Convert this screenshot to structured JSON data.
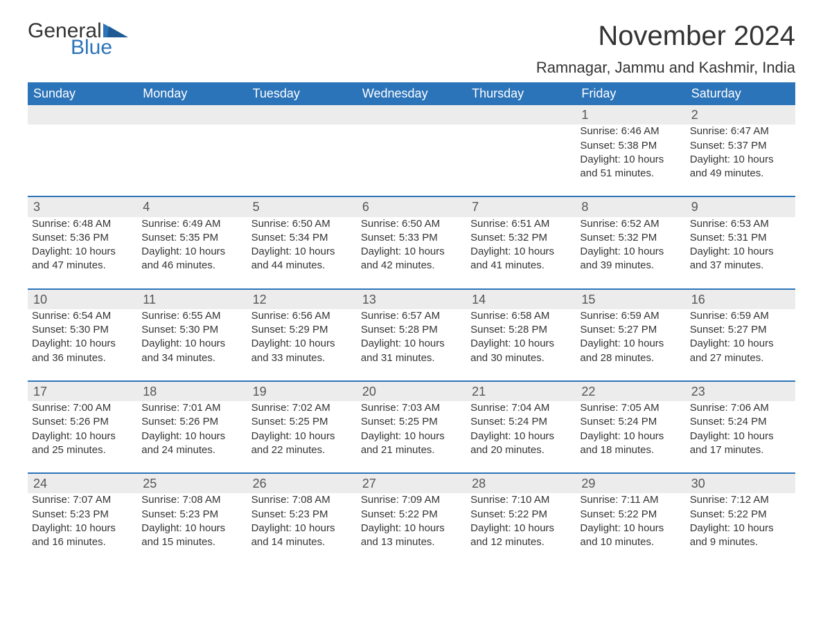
{
  "logo": {
    "general": "General",
    "blue": "Blue",
    "flag_color": "#2c74b9"
  },
  "title": "November 2024",
  "location": "Ramnagar, Jammu and Kashmir, India",
  "weekday_headers": [
    "Sunday",
    "Monday",
    "Tuesday",
    "Wednesday",
    "Thursday",
    "Friday",
    "Saturday"
  ],
  "colors": {
    "header_bg": "#2c74b9",
    "header_text": "#ffffff",
    "daynum_bg": "#ececec",
    "daynum_border": "#2c74b9",
    "text": "#333333",
    "background": "#ffffff"
  },
  "typography": {
    "title_fontsize": 40,
    "location_fontsize": 22,
    "header_fontsize": 18,
    "daynum_fontsize": 18,
    "body_fontsize": 15
  },
  "layout": {
    "start_weekday_index": 5,
    "columns": 7,
    "rows": 5
  },
  "days": [
    {
      "n": 1,
      "sunrise": "6:46 AM",
      "sunset": "5:38 PM",
      "daylight": "10 hours and 51 minutes."
    },
    {
      "n": 2,
      "sunrise": "6:47 AM",
      "sunset": "5:37 PM",
      "daylight": "10 hours and 49 minutes."
    },
    {
      "n": 3,
      "sunrise": "6:48 AM",
      "sunset": "5:36 PM",
      "daylight": "10 hours and 47 minutes."
    },
    {
      "n": 4,
      "sunrise": "6:49 AM",
      "sunset": "5:35 PM",
      "daylight": "10 hours and 46 minutes."
    },
    {
      "n": 5,
      "sunrise": "6:50 AM",
      "sunset": "5:34 PM",
      "daylight": "10 hours and 44 minutes."
    },
    {
      "n": 6,
      "sunrise": "6:50 AM",
      "sunset": "5:33 PM",
      "daylight": "10 hours and 42 minutes."
    },
    {
      "n": 7,
      "sunrise": "6:51 AM",
      "sunset": "5:32 PM",
      "daylight": "10 hours and 41 minutes."
    },
    {
      "n": 8,
      "sunrise": "6:52 AM",
      "sunset": "5:32 PM",
      "daylight": "10 hours and 39 minutes."
    },
    {
      "n": 9,
      "sunrise": "6:53 AM",
      "sunset": "5:31 PM",
      "daylight": "10 hours and 37 minutes."
    },
    {
      "n": 10,
      "sunrise": "6:54 AM",
      "sunset": "5:30 PM",
      "daylight": "10 hours and 36 minutes."
    },
    {
      "n": 11,
      "sunrise": "6:55 AM",
      "sunset": "5:30 PM",
      "daylight": "10 hours and 34 minutes."
    },
    {
      "n": 12,
      "sunrise": "6:56 AM",
      "sunset": "5:29 PM",
      "daylight": "10 hours and 33 minutes."
    },
    {
      "n": 13,
      "sunrise": "6:57 AM",
      "sunset": "5:28 PM",
      "daylight": "10 hours and 31 minutes."
    },
    {
      "n": 14,
      "sunrise": "6:58 AM",
      "sunset": "5:28 PM",
      "daylight": "10 hours and 30 minutes."
    },
    {
      "n": 15,
      "sunrise": "6:59 AM",
      "sunset": "5:27 PM",
      "daylight": "10 hours and 28 minutes."
    },
    {
      "n": 16,
      "sunrise": "6:59 AM",
      "sunset": "5:27 PM",
      "daylight": "10 hours and 27 minutes."
    },
    {
      "n": 17,
      "sunrise": "7:00 AM",
      "sunset": "5:26 PM",
      "daylight": "10 hours and 25 minutes."
    },
    {
      "n": 18,
      "sunrise": "7:01 AM",
      "sunset": "5:26 PM",
      "daylight": "10 hours and 24 minutes."
    },
    {
      "n": 19,
      "sunrise": "7:02 AM",
      "sunset": "5:25 PM",
      "daylight": "10 hours and 22 minutes."
    },
    {
      "n": 20,
      "sunrise": "7:03 AM",
      "sunset": "5:25 PM",
      "daylight": "10 hours and 21 minutes."
    },
    {
      "n": 21,
      "sunrise": "7:04 AM",
      "sunset": "5:24 PM",
      "daylight": "10 hours and 20 minutes."
    },
    {
      "n": 22,
      "sunrise": "7:05 AM",
      "sunset": "5:24 PM",
      "daylight": "10 hours and 18 minutes."
    },
    {
      "n": 23,
      "sunrise": "7:06 AM",
      "sunset": "5:24 PM",
      "daylight": "10 hours and 17 minutes."
    },
    {
      "n": 24,
      "sunrise": "7:07 AM",
      "sunset": "5:23 PM",
      "daylight": "10 hours and 16 minutes."
    },
    {
      "n": 25,
      "sunrise": "7:08 AM",
      "sunset": "5:23 PM",
      "daylight": "10 hours and 15 minutes."
    },
    {
      "n": 26,
      "sunrise": "7:08 AM",
      "sunset": "5:23 PM",
      "daylight": "10 hours and 14 minutes."
    },
    {
      "n": 27,
      "sunrise": "7:09 AM",
      "sunset": "5:22 PM",
      "daylight": "10 hours and 13 minutes."
    },
    {
      "n": 28,
      "sunrise": "7:10 AM",
      "sunset": "5:22 PM",
      "daylight": "10 hours and 12 minutes."
    },
    {
      "n": 29,
      "sunrise": "7:11 AM",
      "sunset": "5:22 PM",
      "daylight": "10 hours and 10 minutes."
    },
    {
      "n": 30,
      "sunrise": "7:12 AM",
      "sunset": "5:22 PM",
      "daylight": "10 hours and 9 minutes."
    }
  ],
  "labels": {
    "sunrise": "Sunrise: ",
    "sunset": "Sunset: ",
    "daylight": "Daylight: "
  }
}
